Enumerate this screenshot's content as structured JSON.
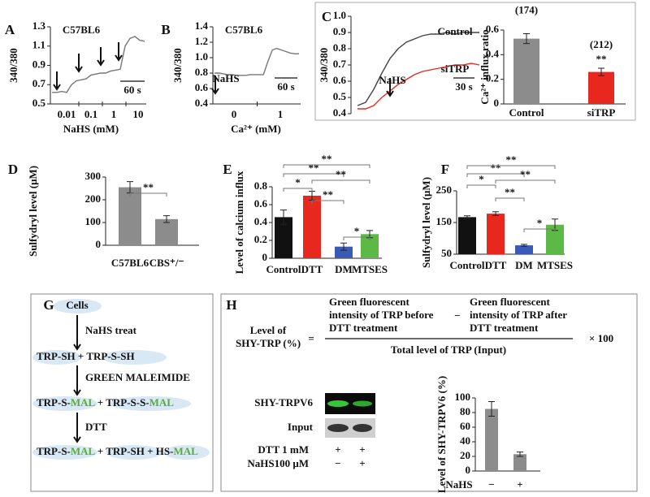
{
  "chart_data": [
    {
      "type": "line",
      "panel": "A",
      "title": "C57BL6",
      "ylabel": "340/380",
      "xlabel": "NaHS (mM)",
      "dose_labels": [
        "0.01",
        "0.1",
        "1",
        "10"
      ],
      "scale_bar": "60 s",
      "series": [
        {
          "color": "#777777",
          "values": [
            0.62,
            0.62,
            0.63,
            0.62,
            0.7,
            0.74,
            0.75,
            0.76,
            0.8,
            0.81,
            0.82,
            0.82,
            0.84,
            0.85,
            0.86,
            1.1,
            1.18,
            1.2,
            1.16,
            1.15
          ]
        }
      ],
      "ylim": [
        0.5,
        1.3
      ],
      "yticks": [
        0.5,
        0.7,
        0.9,
        1.1,
        1.3
      ]
    },
    {
      "type": "line",
      "panel": "B",
      "title": "C57BL6",
      "ylabel": "340/380",
      "xlabel": "Ca²⁺ (mM)",
      "dose_labels": [
        "0",
        "1"
      ],
      "scale_bar": "60 s",
      "annotation": "NaHS",
      "series": [
        {
          "color": "#777777",
          "values": [
            0.8,
            0.8,
            0.79,
            0.78,
            0.78,
            0.77,
            0.77,
            0.77,
            0.78,
            0.78,
            0.78,
            0.78,
            0.95,
            1.1,
            1.12,
            1.1,
            1.08,
            1.06,
            1.05,
            1.05
          ]
        }
      ],
      "ylim": [
        0.4,
        1.4
      ],
      "yticks": [
        0.4,
        0.6,
        0.8,
        {
          "value": 1,
          "label": "1.0"
        },
        1.2,
        1.4
      ]
    },
    {
      "type": "line",
      "panel": "C",
      "ylabel": "340/380",
      "scale_bar": "30 s",
      "annotation": "NaHS",
      "series": [
        {
          "name": "Control",
          "color": "#444444",
          "values": [
            0.45,
            0.47,
            0.55,
            0.65,
            0.74,
            0.8,
            0.84,
            0.86,
            0.88,
            0.89,
            0.89,
            0.9,
            0.89,
            0.9,
            0.9,
            0.9
          ]
        },
        {
          "name": "siTRP",
          "color": "#e8281e",
          "values": [
            0.43,
            0.43,
            0.45,
            0.5,
            0.54,
            0.58,
            0.61,
            0.64,
            0.66,
            0.67,
            0.68,
            0.69,
            0.7,
            0.7,
            0.71,
            0.7
          ]
        }
      ],
      "ylim": [
        0.4,
        1
      ],
      "yticks": [
        0.4,
        0.5,
        0.6,
        0.7,
        0.8,
        0.9,
        {
          "value": 1,
          "label": "1.0"
        }
      ]
    },
    {
      "type": "bar",
      "ylabel": "Ca²⁺ influx ratio",
      "categories": [
        "Control",
        "siTRP"
      ],
      "values": [
        0.53,
        0.26
      ],
      "errors": [
        0.04,
        0.03
      ],
      "colors": [
        "#8c8c8c",
        "#e8281e"
      ],
      "counts": [
        "(174)",
        "(212)"
      ],
      "stars": [
        null,
        "**"
      ],
      "ylim": [
        0,
        0.6
      ],
      "yticks": [
        0,
        0.2,
        0.4,
        0.6
      ]
    },
    {
      "type": "bar",
      "panel": "D",
      "ylabel": "Sulfydryl level (μM)",
      "categories": [
        "C57BL6",
        "CBS⁺/⁻"
      ],
      "values": [
        255,
        115
      ],
      "errors": [
        25,
        15
      ],
      "colors": [
        "#8c8c8c",
        "#8c8c8c"
      ],
      "significance": [
        {
          "from": "C57BL6",
          "to": "CBS⁺/⁻",
          "label": "**"
        }
      ],
      "ylim": [
        0,
        300
      ],
      "yticks": [
        0,
        100,
        200,
        300
      ]
    },
    {
      "type": "bar",
      "panel": "E",
      "ylabel": "Level of calcium influx",
      "categories": [
        "Control",
        "DTT",
        "DM",
        "MTSES"
      ],
      "values": [
        0.46,
        0.7,
        0.13,
        0.27
      ],
      "errors": [
        0.08,
        0.05,
        0.04,
        0.04
      ],
      "colors": [
        "#111111",
        "#e8281e",
        "#3a5bb5",
        "#5cb946"
      ],
      "significance": [
        {
          "from": "Control",
          "to": "DTT",
          "label": "*"
        },
        {
          "from": "DTT",
          "to": "DM",
          "label": "**"
        },
        {
          "from": "DM",
          "to": "MTSES",
          "label": "*"
        },
        {
          "from": "Control",
          "to": "DM",
          "label": "**"
        },
        {
          "from": "DTT",
          "to": "MTSES",
          "label": "**"
        },
        {
          "from": "Control",
          "to": "MTSES",
          "label": "**"
        }
      ],
      "ylim": [
        0,
        0.8
      ],
      "yticks": [
        0,
        0.2,
        0.4,
        0.6,
        0.8
      ]
    },
    {
      "type": "bar",
      "panel": "F",
      "ylabel": "Sulfydryl level (μM)",
      "categories": [
        "Control",
        "DTT",
        "DM",
        "MTSES"
      ],
      "values": [
        167,
        178,
        78,
        143
      ],
      "errors": [
        4,
        6,
        3,
        18
      ],
      "colors": [
        "#111111",
        "#e8281e",
        "#3a5bb5",
        "#5cb946"
      ],
      "significance": [
        {
          "from": "Control",
          "to": "DTT",
          "label": "*"
        },
        {
          "from": "DTT",
          "to": "DM",
          "label": "**"
        },
        {
          "from": "DM",
          "to": "MTSES",
          "label": "*"
        },
        {
          "from": "Control",
          "to": "DM",
          "label": "**"
        },
        {
          "from": "DTT",
          "to": "MTSES",
          "label": "**"
        },
        {
          "from": "Control",
          "to": "MTSES",
          "label": "**"
        }
      ],
      "ylim": [
        50,
        250
      ],
      "yticks": [
        50,
        150,
        250
      ]
    },
    {
      "type": "bar",
      "ylabel": "Level of  SHY-TRPV6 (%)",
      "xlabel": "NaHS",
      "categories": [
        "−",
        "+"
      ],
      "values": [
        85,
        23
      ],
      "errors": [
        10,
        3
      ],
      "colors": [
        "#8c8c8c",
        "#8c8c8c"
      ],
      "ylim": [
        0,
        100
      ],
      "yticks": [
        0,
        20,
        40,
        60,
        80,
        100
      ]
    }
  ],
  "panel_g": {
    "panel": "G",
    "start": "Cells",
    "steps": [
      {
        "text": "NaHS treat",
        "color": "#111111"
      },
      {
        "text": "GREEN MALEIMIDE",
        "color": "#5aaa3c"
      },
      {
        "text": "DTT",
        "color": "#111111"
      }
    ],
    "rows": [
      [
        {
          "text": "TRP-SH",
          "color": "#111111"
        },
        {
          "text": " + TRP-S-SH",
          "color": "#111111"
        }
      ],
      [
        {
          "text": "TRP-S-",
          "color": "#111111"
        },
        {
          "text": "MAL",
          "color": "#5aaa3c"
        },
        {
          "text": " + TRP-S-S-",
          "color": "#111111"
        },
        {
          "text": "MAL",
          "color": "#5aaa3c"
        }
      ],
      [
        {
          "text": "TRP-S-",
          "color": "#111111"
        },
        {
          "text": "MAL",
          "color": "#5aaa3c"
        },
        {
          "text": " + TRP-SH + HS-",
          "color": "#111111"
        },
        {
          "text": "MAL",
          "color": "#5aaa3c"
        }
      ]
    ]
  },
  "panel_h": {
    "panel": "H",
    "left": [
      "Level of",
      "SHY-TRP (%)"
    ],
    "equals": "=",
    "before": [
      "Green fluorescent",
      "intensity of TRP before",
      "DTT treatment"
    ],
    "minus": "−",
    "after": [
      "Green fluorescent",
      "intensity of TRP after",
      "DTT treatment"
    ],
    "denominator": "Total level of TRP (Input)",
    "times": "× 100",
    "blot_rows": [
      "SHY-TRPV6",
      "Input"
    ],
    "conditions": [
      {
        "name": "DTT 1 mM",
        "signs": [
          "+",
          "+"
        ]
      },
      {
        "name": "NaHS100 μM",
        "signs": [
          "−",
          "+"
        ]
      }
    ]
  }
}
